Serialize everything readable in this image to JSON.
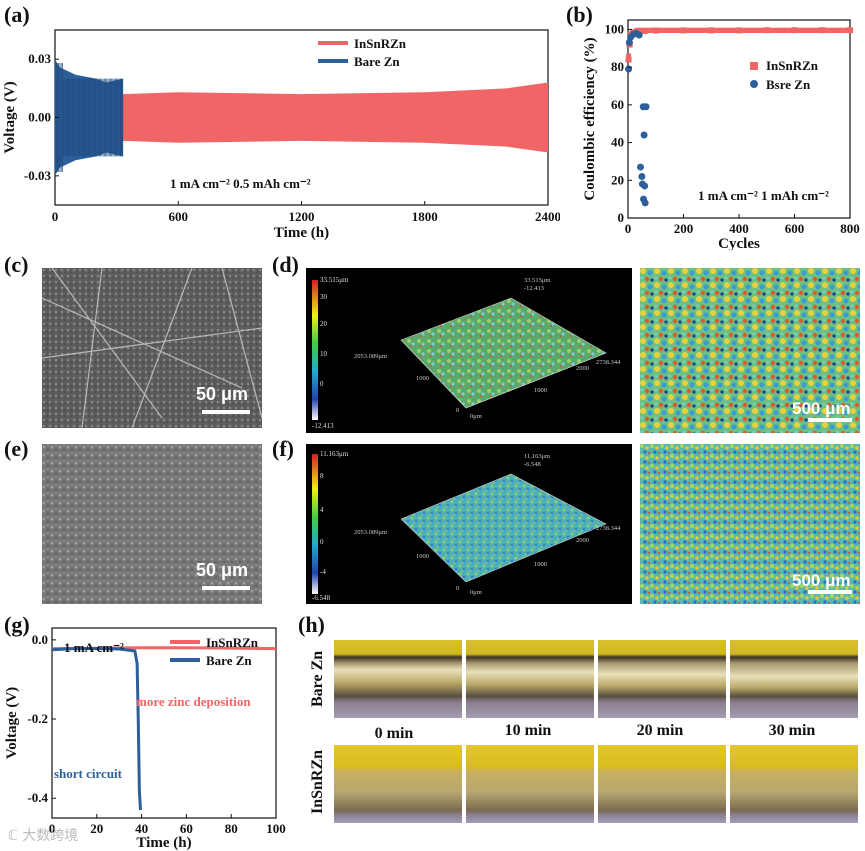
{
  "panels": {
    "a": "(a)",
    "b": "(b)",
    "c": "(c)",
    "d": "(d)",
    "e": "(e)",
    "f": "(f)",
    "g": "(g)",
    "h": "(h)"
  },
  "chart_data": [
    {
      "id": "a",
      "type": "line",
      "xlabel": "Time (h)",
      "ylabel": "Voltage (V)",
      "xlim": [
        0,
        2400
      ],
      "ylim": [
        -0.045,
        0.045
      ],
      "xticks": [
        "0",
        "600",
        "1200",
        "1800",
        "2400"
      ],
      "yticks": [
        "0.03",
        "0.00",
        "-0.03"
      ],
      "annotation": "1 mA cm⁻² 0.5 mAh cm⁻²",
      "series": [
        {
          "name": "InSnRZn",
          "color": "#f06565",
          "x": [
            0,
            300,
            600,
            1200,
            1800,
            2200,
            2400
          ],
          "amplitude": [
            0.012,
            0.012,
            0.013,
            0.012,
            0.013,
            0.015,
            0.018
          ]
        },
        {
          "name": "Bare Zn",
          "color": "#2d5f9a",
          "x": [
            0,
            20,
            100,
            200,
            250,
            330
          ],
          "amplitude": [
            0.03,
            0.026,
            0.022,
            0.02,
            0.018,
            0.02
          ]
        }
      ]
    },
    {
      "id": "b",
      "type": "scatter",
      "xlabel": "Cycles",
      "ylabel": "Coulombic efficiency (%)",
      "xlim": [
        0,
        800
      ],
      "ylim": [
        0,
        105
      ],
      "xticks": [
        "0",
        "200",
        "400",
        "600",
        "800"
      ],
      "yticks": [
        "0",
        "20",
        "40",
        "60",
        "80",
        "100"
      ],
      "annotation": "1 mA cm⁻² 1 mAh cm⁻²",
      "series": [
        {
          "name": "InSnRZn",
          "color": "#f06565",
          "marker": "square",
          "x": [
            2,
            5,
            10,
            20,
            40,
            60,
            100,
            200,
            300,
            400,
            500,
            600,
            700,
            800
          ],
          "y": [
            84,
            92,
            97,
            98.5,
            99,
            99.2,
            99.4,
            99.5,
            99.5,
            99.5,
            99.6,
            99.6,
            99.6,
            99.6
          ]
        },
        {
          "name": "Bsre Zn",
          "color": "#2d5f9a",
          "marker": "circle",
          "x": [
            2,
            5,
            10,
            20,
            30,
            40,
            45,
            50,
            52,
            55,
            56,
            58,
            60,
            62,
            65
          ],
          "y": [
            79,
            93,
            96,
            97.5,
            98,
            97,
            27,
            22,
            18,
            59,
            10,
            44,
            17,
            8,
            59
          ]
        }
      ]
    },
    {
      "id": "g",
      "type": "line",
      "xlabel": "Time (h)",
      "ylabel": "Voltage (V)",
      "xlim": [
        0,
        100
      ],
      "ylim": [
        -0.45,
        0.03
      ],
      "xticks": [
        "0",
        "20",
        "40",
        "60",
        "80",
        "100"
      ],
      "yticks": [
        "0.0",
        "-0.2",
        "-0.4"
      ],
      "annotation": "1 mA cm⁻²",
      "annotation_red": "more zinc deposition",
      "annotation_blue": "short circuit",
      "series": [
        {
          "name": "InSnRZn",
          "color": "#f06565",
          "x": [
            0,
            20,
            40,
            60,
            80,
            100
          ],
          "y": [
            -0.022,
            -0.021,
            -0.02,
            -0.02,
            -0.021,
            -0.022
          ]
        },
        {
          "name": "Bare Zn",
          "color": "#2d5f9a",
          "x": [
            0,
            10,
            20,
            30,
            37,
            38,
            38.5,
            39,
            39.5
          ],
          "y": [
            -0.025,
            -0.022,
            -0.022,
            -0.023,
            -0.028,
            -0.06,
            -0.2,
            -0.38,
            -0.43
          ]
        }
      ]
    }
  ],
  "sem": {
    "c_scale": "50 μm",
    "e_scale": "50 μm"
  },
  "profile3d": {
    "d": {
      "max": "33.515μm",
      "min": "-12.413",
      "top_right": "33.515μm\n-12.413",
      "ticks": [
        "30",
        "20",
        "10",
        "0"
      ],
      "y_left": "2053.089μm",
      "x_right": "2738.344",
      "axis_a": [
        "1000",
        "0"
      ],
      "axis_b": [
        "2000",
        "1000",
        "0μm"
      ]
    },
    "f": {
      "max": "11.163μm",
      "min": "-6.548",
      "top_right": "11.163μm\n-6.548",
      "ticks": [
        "8",
        "4",
        "0",
        "-4"
      ],
      "y_left": "2053.089μm",
      "x_right": "2738.344",
      "axis_a": [
        "1000",
        "0"
      ],
      "axis_b": [
        "2000",
        "1000",
        "0μm"
      ]
    },
    "d_scale": "500 μm",
    "f_scale": "500 μm"
  },
  "optical": {
    "rows": [
      "Bare Zn",
      "InSnRZn"
    ],
    "times": [
      "0 min",
      "10 min",
      "20 min",
      "30 min"
    ]
  },
  "colors": {
    "red": "#f06565",
    "blue": "#2d5f9a",
    "text": "#111111"
  },
  "watermark": "ℂ 大数跨境"
}
